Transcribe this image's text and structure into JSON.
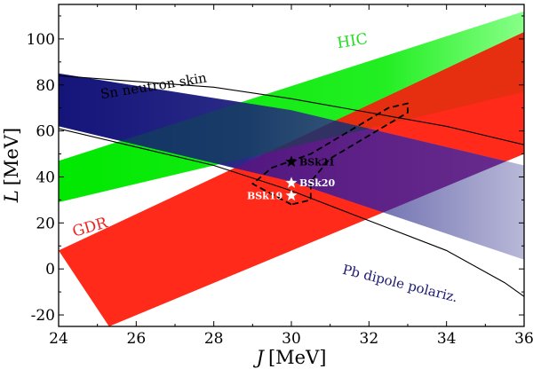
{
  "chart_data": {
    "type": "area",
    "xlabel": {
      "var": "J",
      "unit": "[MeV]"
    },
    "ylabel": {
      "var": "L",
      "unit": "[MeV]"
    },
    "xlim": [
      24,
      36
    ],
    "ylim": [
      -25,
      115
    ],
    "xticks": [
      24,
      26,
      28,
      30,
      32,
      34,
      36
    ],
    "yticks": [
      -20,
      0,
      20,
      40,
      60,
      80,
      100
    ],
    "xtick_labels": [
      "24",
      "26",
      "28",
      "30",
      "32",
      "34",
      "36"
    ],
    "ytick_labels": [
      "-20",
      "0",
      "20",
      "40",
      "60",
      "80",
      "100"
    ],
    "bands": [
      {
        "name": "HIC",
        "label": "HIC",
        "color": "#00ee00",
        "label_color": "#22dd22",
        "lower": [
          [
            24,
            29
          ],
          [
            36,
            77
          ]
        ],
        "upper": [
          [
            24,
            47
          ],
          [
            36,
            112
          ]
        ]
      },
      {
        "name": "GDR",
        "label": "GDR",
        "color": "#ff2a1a",
        "label_color": "#ee2222",
        "lower": [
          [
            25.3,
            -25
          ],
          [
            36,
            50
          ]
        ],
        "upper": [
          [
            24,
            8
          ],
          [
            36,
            103
          ]
        ]
      },
      {
        "name": "Pb dipole polariz.",
        "label": "Pb dipole polariz.",
        "color": "#1a1a80",
        "label_color": "#1a1a70",
        "upper": [
          [
            24,
            85
          ],
          [
            30,
            69
          ],
          [
            36,
            45
          ]
        ],
        "lower": [
          [
            24,
            62
          ],
          [
            30,
            38
          ],
          [
            36,
            4
          ]
        ]
      }
    ],
    "curves": [
      {
        "name": "Sn neutron skin",
        "label": "Sn neutron skin",
        "upper": [
          [
            24,
            84
          ],
          [
            28,
            79
          ],
          [
            30,
            74
          ],
          [
            32,
            68
          ],
          [
            34,
            62
          ],
          [
            36,
            54
          ]
        ],
        "lower": [
          [
            24,
            61
          ],
          [
            28,
            45
          ],
          [
            30,
            34
          ],
          [
            32,
            21
          ],
          [
            34,
            8
          ],
          [
            35.5,
            -6
          ],
          [
            36,
            -12
          ]
        ]
      }
    ],
    "ellipse": {
      "name": "constraint contour",
      "points": [
        [
          30,
          28
        ],
        [
          29,
          37
        ],
        [
          29.5,
          44
        ],
        [
          30.5,
          50
        ],
        [
          31.5,
          60
        ],
        [
          32.5,
          70
        ],
        [
          33,
          72
        ],
        [
          33,
          68
        ],
        [
          32,
          58
        ],
        [
          31,
          48
        ],
        [
          30.5,
          38
        ],
        [
          30.5,
          30
        ]
      ]
    },
    "stars": [
      {
        "name": "BSk21",
        "label": "BSk21",
        "x": 30.0,
        "y": 46.6,
        "color": "#000000",
        "label_color": "#000000"
      },
      {
        "name": "BSk20",
        "label": "BSk20",
        "x": 30.0,
        "y": 37.4,
        "color": "#ffffff",
        "label_color": "#ffffff"
      },
      {
        "name": "BSk19",
        "label": "BSk19",
        "x": 30.0,
        "y": 31.9,
        "color": "#ffffff",
        "label_color": "#ffffff"
      }
    ],
    "annotations": [
      {
        "text": "HIC",
        "x": 31.2,
        "y": 96,
        "color": "#22dd22",
        "rotate": -9
      },
      {
        "text": "GDR",
        "x": 24.4,
        "y": 14,
        "color": "#ee2222",
        "rotate": -16
      },
      {
        "text": "Sn neutron skin",
        "x": 25.1,
        "y": 74,
        "color": "#000000",
        "rotate": -9
      },
      {
        "text": "Pb dipole polariz.",
        "x": 31.3,
        "y": -2,
        "color": "#1a1a70",
        "rotate": 14
      }
    ]
  }
}
